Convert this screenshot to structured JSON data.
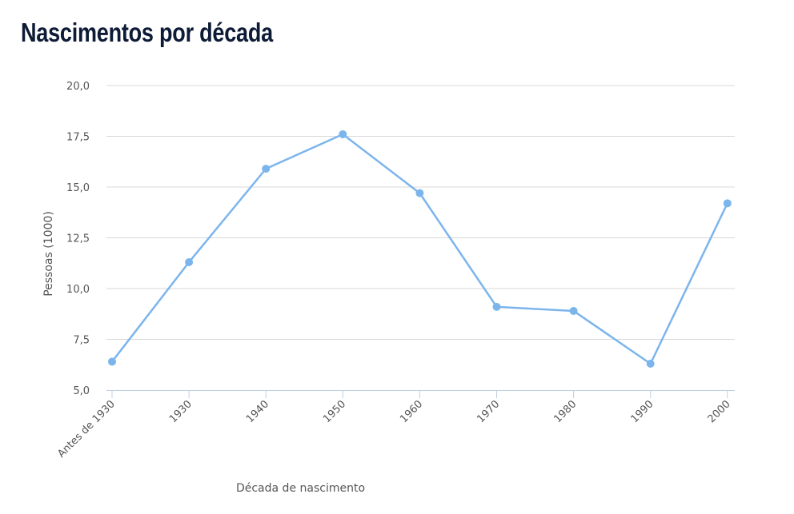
{
  "title": "Nascimentos por década",
  "chart_data": {
    "type": "line",
    "title": "Nascimentos por década",
    "xlabel": "Década de nascimento",
    "ylabel": "Pessoas (1000)",
    "categories": [
      "Antes de 1930",
      "1930",
      "1940",
      "1950",
      "1960",
      "1970",
      "1980",
      "1990",
      "2000"
    ],
    "series": [
      {
        "values": [
          6.4,
          11.3,
          15.9,
          17.6,
          14.7,
          9.1,
          8.9,
          6.3,
          14.2
        ]
      }
    ],
    "ylim": [
      5,
      20
    ],
    "yticks": [
      "5,0",
      "7,5",
      "10,0",
      "12,5",
      "15,0",
      "17,5",
      "20,0"
    ],
    "grid": true,
    "legend": "none",
    "color": "#7cb5ec"
  }
}
